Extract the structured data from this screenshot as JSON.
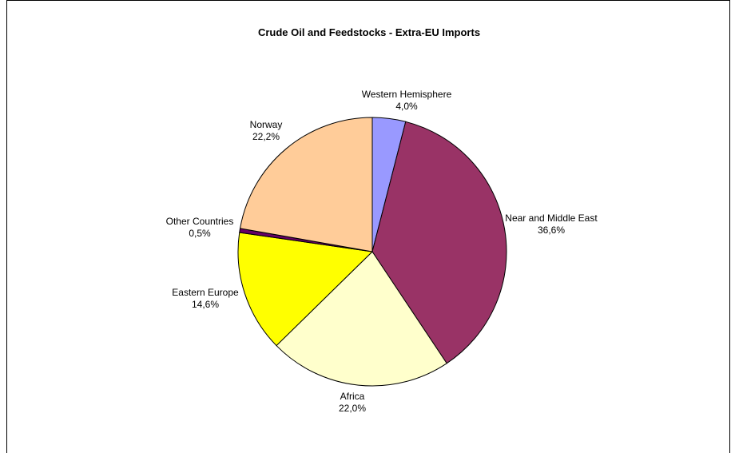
{
  "chart_data": {
    "type": "pie",
    "title": "Crude Oil and Feedstocks  - Extra-EU Imports",
    "slices": [
      {
        "label": "Western Hemisphere",
        "value": 4.0,
        "display": "4,0%",
        "color": "#9999ff"
      },
      {
        "label": "Near and Middle East",
        "value": 36.6,
        "display": "36,6%",
        "color": "#993366"
      },
      {
        "label": "Africa",
        "value": 22.0,
        "display": "22,0%",
        "color": "#ffffcc"
      },
      {
        "label": "Eastern Europe",
        "value": 14.6,
        "display": "14,6%",
        "color": "#ffff00"
      },
      {
        "label": "Other Countries",
        "value": 0.5,
        "display": "0,5%",
        "color": "#660066"
      },
      {
        "label": "Norway",
        "value": 22.2,
        "display": "22,2%",
        "color": "#ffcc99"
      }
    ]
  }
}
